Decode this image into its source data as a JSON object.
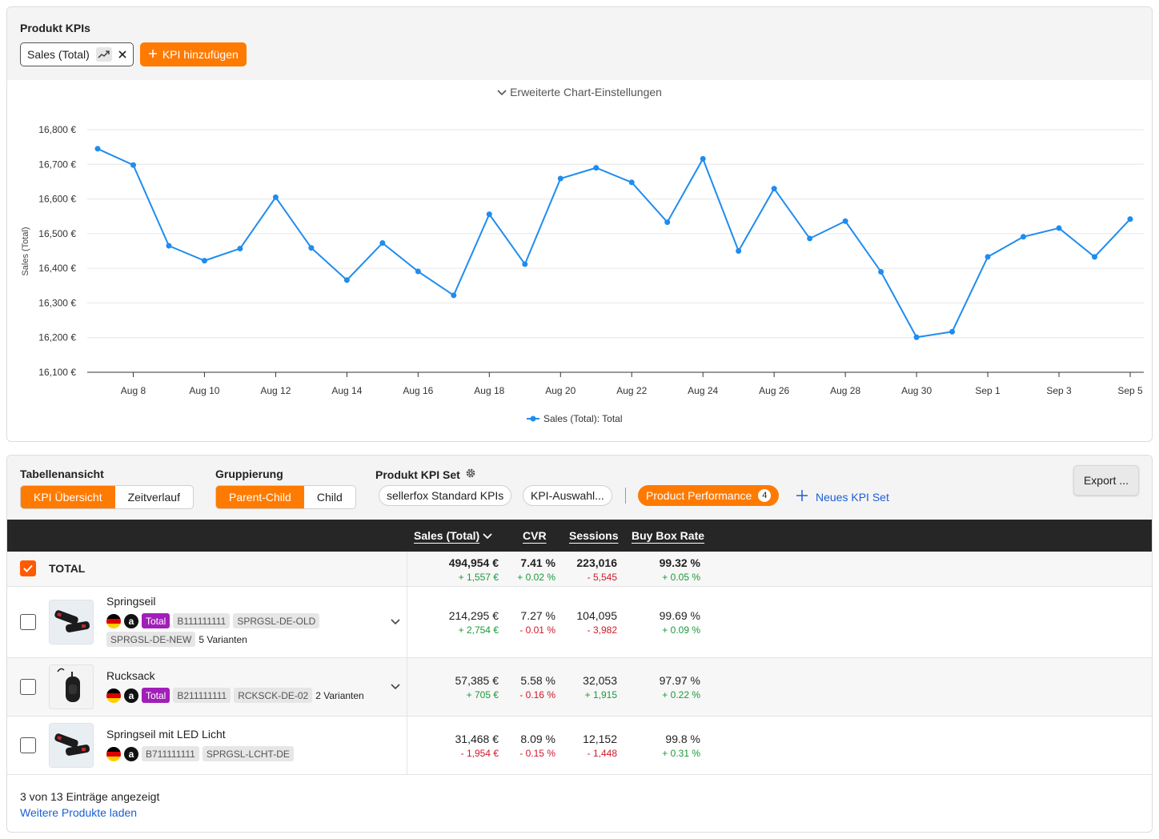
{
  "kpi_section": {
    "title": "Produkt KPIs",
    "kpi_chip_label": "Sales (Total)",
    "add_kpi_label": "KPI hinzufügen",
    "chart_settings_label": "Erweiterte Chart-Einstellungen"
  },
  "chart_data": {
    "type": "line",
    "ylabel": "Sales (Total)",
    "ylim": [
      16100,
      16800
    ],
    "y_ticks": [
      "16,800 €",
      "16,700 €",
      "16,600 €",
      "16,500 €",
      "16,400 €",
      "16,300 €",
      "16,200 €",
      "16,100 €"
    ],
    "y_tick_values": [
      16800,
      16700,
      16600,
      16500,
      16400,
      16300,
      16200,
      16100
    ],
    "x_ticks": [
      "Aug 8",
      "Aug 10",
      "Aug 12",
      "Aug 14",
      "Aug 16",
      "Aug 18",
      "Aug 20",
      "Aug 22",
      "Aug 24",
      "Aug 26",
      "Aug 28",
      "Aug 30",
      "Sep 1",
      "Sep 3",
      "Sep 5"
    ],
    "x": [
      "Aug 7",
      "Aug 8",
      "Aug 9",
      "Aug 10",
      "Aug 11",
      "Aug 12",
      "Aug 13",
      "Aug 14",
      "Aug 15",
      "Aug 16",
      "Aug 17",
      "Aug 18",
      "Aug 19",
      "Aug 20",
      "Aug 21",
      "Aug 22",
      "Aug 23",
      "Aug 24",
      "Aug 25",
      "Aug 26",
      "Aug 27",
      "Aug 28",
      "Aug 29",
      "Aug 30",
      "Aug 31",
      "Sep 1",
      "Sep 2",
      "Sep 3",
      "Sep 4",
      "Sep 5"
    ],
    "series": [
      {
        "name": "Sales (Total): Total",
        "color": "#1e8cf0",
        "values": [
          16745,
          16698,
          16465,
          16422,
          16457,
          16605,
          16459,
          16366,
          16473,
          16391,
          16322,
          16556,
          16412,
          16659,
          16690,
          16648,
          16533,
          16716,
          16450,
          16630,
          16486,
          16536,
          16390,
          16201,
          16217,
          16433,
          16491,
          16516,
          16433,
          16542
        ]
      }
    ],
    "grid": true,
    "legend": "bottom-center"
  },
  "table_controls": {
    "view_label": "Tabellenansicht",
    "view_options": [
      "KPI Übersicht",
      "Zeitverlauf"
    ],
    "grouping_label": "Gruppierung",
    "grouping_options": [
      "Parent-Child",
      "Child"
    ],
    "kpi_set_label": "Produkt KPI Set",
    "kpi_sets": [
      "sellerfox Standard KPIs",
      "KPI-Auswahl..."
    ],
    "active_set": "Product Performance",
    "active_set_count": "4",
    "new_set_label": "Neues KPI Set",
    "export_label": "Export ..."
  },
  "table": {
    "columns": [
      "Sales (Total)",
      "CVR",
      "Sessions",
      "Buy Box Rate"
    ],
    "total": {
      "label": "TOTAL",
      "values": [
        "494,954 €",
        "7.41 %",
        "223,016",
        "99.32 %"
      ],
      "deltas": [
        "+ 1,557 €",
        "+ 0.02 %",
        "- 5,545",
        "+ 0.05 %"
      ]
    },
    "rows": [
      {
        "name": "Springseil",
        "tag_total": "Total",
        "asin": "B111111111",
        "skus": [
          "SPRGSL-DE-OLD",
          "SPRGSL-DE-NEW"
        ],
        "variants": "5 Varianten",
        "values": [
          "214,295 €",
          "7.27 %",
          "104,095",
          "99.69 %"
        ],
        "deltas": [
          "+ 2,754 €",
          "- 0.01 %",
          "- 3,982",
          "+ 0.09 %"
        ]
      },
      {
        "name": "Rucksack",
        "tag_total": "Total",
        "asin": "B211111111",
        "skus": [
          "RCKSCK-DE-02"
        ],
        "variants": "2 Varianten",
        "values": [
          "57,385 €",
          "5.58 %",
          "32,053",
          "97.97 %"
        ],
        "deltas": [
          "+ 705 €",
          "- 0.16 %",
          "+ 1,915",
          "+ 0.22 %"
        ]
      },
      {
        "name": "Springseil mit LED Licht",
        "asin": "B711111111",
        "skus": [
          "SPRGSL-LCHT-DE"
        ],
        "values": [
          "31,468 €",
          "8.09 %",
          "12,152",
          "99.8 %"
        ],
        "deltas": [
          "- 1,954 €",
          "- 0.15 %",
          "- 1,448",
          "+ 0.31 %"
        ]
      }
    ],
    "footer_count": "3 von 13 Einträge angezeigt",
    "footer_more": "Weitere Produkte laden"
  },
  "colors": {
    "accent": "#ff7a00",
    "line": "#1e8cf0",
    "positive": "#1a9a3a",
    "negative": "#d0182c",
    "tag_total": "#a11fb8"
  }
}
